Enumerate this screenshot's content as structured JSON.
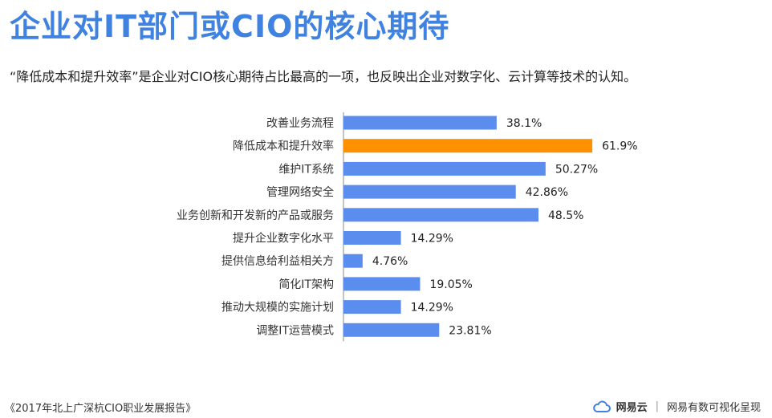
{
  "header": {
    "title": "企业对IT部门或CIO的核心期待",
    "subtitle": "“降低成本和提升效率”是企业对CIO核心期待占比最高的一项，也反映出企业对数字化、云计算等技术的认知。"
  },
  "chart_data": {
    "type": "bar",
    "orientation": "horizontal",
    "categories": [
      "改善业务流程",
      "降低成本和提升效率",
      "维护IT系统",
      "管理网络安全",
      "业务创新和开发新的产品或服务",
      "提升企业数字化水平",
      "提供信息给利益相关方",
      "简化IT架构",
      "推动大规模的实施计划",
      "调整IT运营模式"
    ],
    "values": [
      38.1,
      61.9,
      50.27,
      42.86,
      48.5,
      14.29,
      4.76,
      19.05,
      14.29,
      23.81
    ],
    "value_labels": [
      "38.1%",
      "61.9%",
      "50.27%",
      "42.86%",
      "48.5%",
      "14.29%",
      "4.76%",
      "19.05%",
      "14.29%",
      "23.81%"
    ],
    "highlight_index": 1,
    "colors": {
      "bar": "#5B8DEF",
      "highlight": "#FF9100",
      "axis": "#888888"
    },
    "grid": false,
    "legend": "none"
  },
  "footer": {
    "source": "《2017年北上广深杭CIO职业发展报告》",
    "brand_icon": "cloud-icon",
    "brand_name": "网易云",
    "separator": "|",
    "tagline": "网易有数可视化呈现"
  }
}
